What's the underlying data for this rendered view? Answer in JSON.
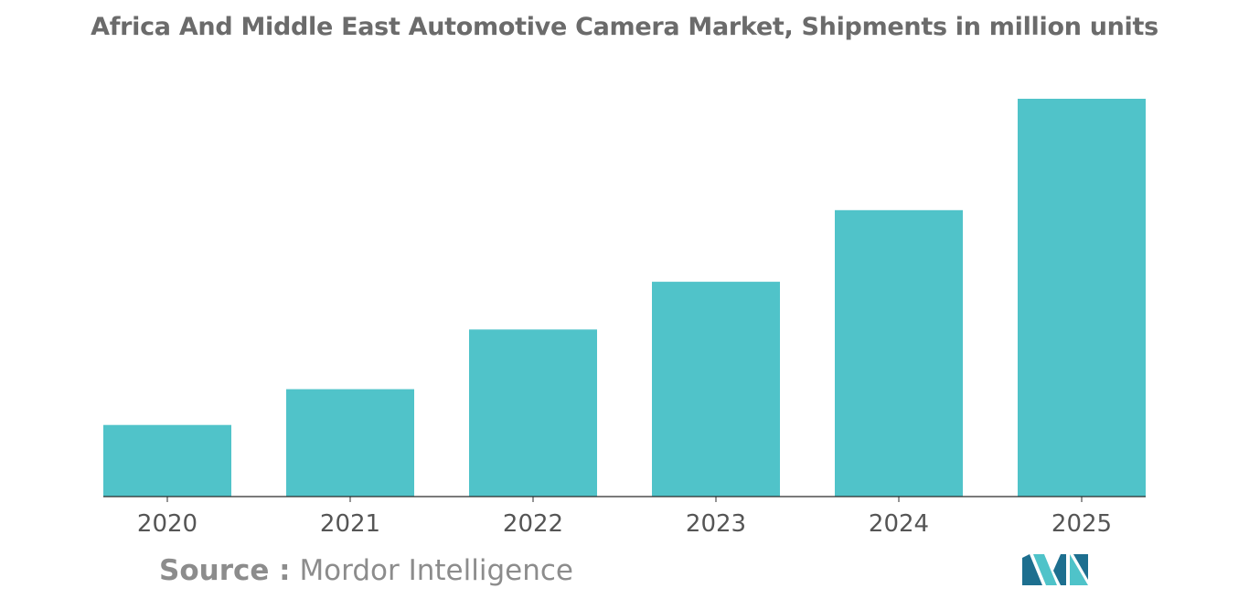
{
  "chart_title": "Africa And Middle East Automotive Camera Market, Shipments in million units",
  "source": {
    "label": "Source :",
    "name": "Mordor Intelligence"
  },
  "colors": {
    "bar": "#50c3c9",
    "axis": "#2b2b2b",
    "title": "#6b6b6b",
    "tick_label": "#555555",
    "source": "#8c8c8c",
    "logo_dark": "#1d6f8f",
    "logo_light": "#4fc3c9"
  },
  "logo": {
    "icon": "mordor-intelligence-logo-icon"
  },
  "chart_data": {
    "type": "bar",
    "title": "Africa And Middle East Automotive Camera Market, Shipments in million units",
    "categories": [
      "2020",
      "2021",
      "2022",
      "2023",
      "2024",
      "2025"
    ],
    "values": [
      18,
      27,
      42,
      54,
      72,
      100
    ],
    "ylim": [
      0,
      100
    ],
    "xlabel": "",
    "ylabel": "",
    "grid": false,
    "legend": "none"
  }
}
